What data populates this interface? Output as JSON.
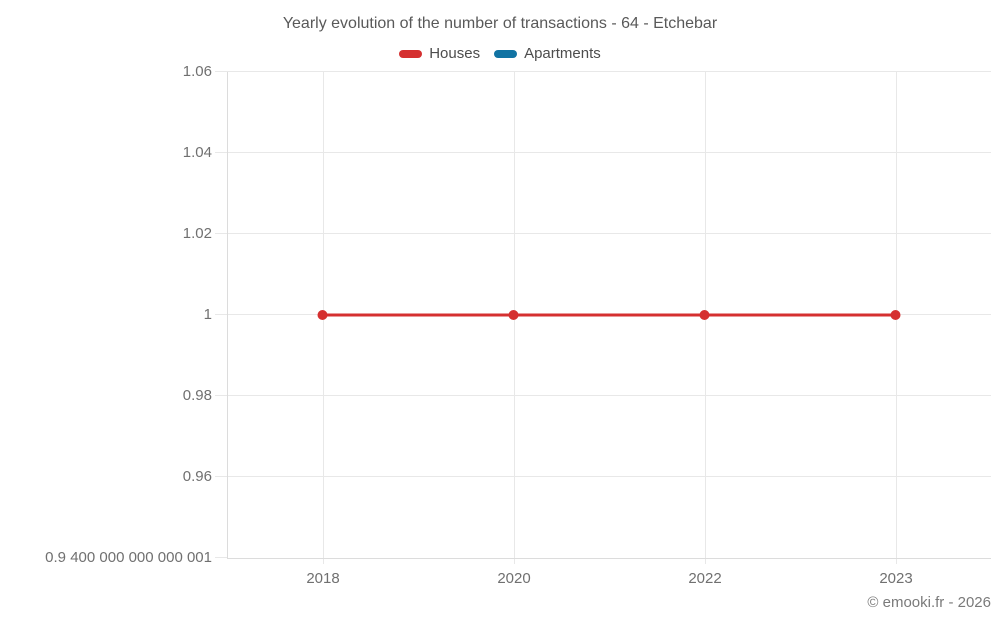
{
  "title": "Yearly evolution of the number of transactions - 64 - Etchebar",
  "footer": "© emooki.fr - 2026",
  "legend": [
    {
      "label": "Houses",
      "color": "#d53030"
    },
    {
      "label": "Apartments",
      "color": "#1173a3"
    }
  ],
  "colors": {
    "houses": "#d53030",
    "apartments": "#1173a3",
    "gridline": "#e8e8e8",
    "axis": "#dcdcdc",
    "title_text": "#595959",
    "axis_text": "#707070"
  },
  "chart_data": {
    "type": "line",
    "title": "Yearly evolution of the number of transactions - 64 - Etchebar",
    "xlabel": "",
    "ylabel": "",
    "categories": [
      "2018",
      "2020",
      "2022",
      "2023"
    ],
    "series": [
      {
        "name": "Houses",
        "color": "#d53030",
        "values": [
          1,
          1,
          1,
          1
        ]
      },
      {
        "name": "Apartments",
        "color": "#1173a3",
        "values": []
      }
    ],
    "ylim": [
      0.94,
      1.06
    ],
    "y_ticks": [
      {
        "label": "1.06",
        "value": 1.06
      },
      {
        "label": "1.04",
        "value": 1.04
      },
      {
        "label": "1.02",
        "value": 1.02
      },
      {
        "label": "1",
        "value": 1.0
      },
      {
        "label": "0.98",
        "value": 0.98
      },
      {
        "label": "0.96",
        "value": 0.96
      },
      {
        "label": "0.9 400 000 000 000 001",
        "value": 0.94
      }
    ],
    "grid": true,
    "legend_position": "top"
  }
}
